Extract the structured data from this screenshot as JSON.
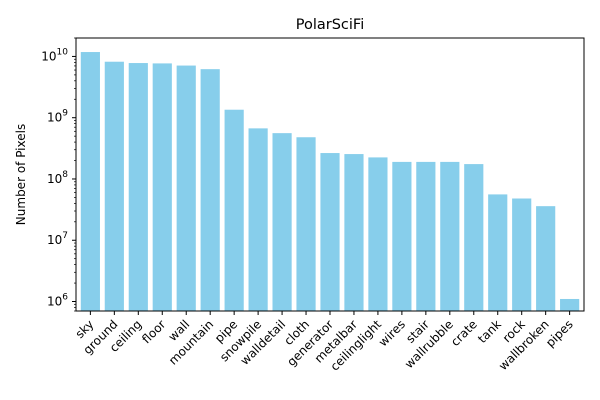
{
  "chart_data": {
    "type": "bar",
    "title": "PolarSciFi",
    "xlabel": "",
    "ylabel": "Number of Pixels",
    "yscale": "log",
    "ylim": [
      700000,
      20000000000
    ],
    "yticks": [
      {
        "value": 1000000,
        "base": "10",
        "exp": "6"
      },
      {
        "value": 10000000,
        "base": "10",
        "exp": "7"
      },
      {
        "value": 100000000,
        "base": "10",
        "exp": "8"
      },
      {
        "value": 1000000000,
        "base": "10",
        "exp": "9"
      },
      {
        "value": 10000000000,
        "base": "10",
        "exp": "10"
      }
    ],
    "grid": false,
    "bar_color": "#87ceeb",
    "categories": [
      "sky",
      "ground",
      "ceiling",
      "floor",
      "wall",
      "mountain",
      "pipe",
      "snowpile",
      "walldetail",
      "cloth",
      "generator",
      "metalbar",
      "ceilinglight",
      "wires",
      "stair",
      "wallrubble",
      "crate",
      "tank",
      "rock",
      "wallbroken",
      "pipes"
    ],
    "values": [
      11800000000,
      8200000000,
      7800000000,
      7700000000,
      7100000000,
      6200000000,
      1350000000,
      670000000,
      560000000,
      480000000,
      265000000,
      255000000,
      225000000,
      190000000,
      190000000,
      190000000,
      175000000,
      56000000,
      48000000,
      36000000,
      1100000
    ]
  }
}
